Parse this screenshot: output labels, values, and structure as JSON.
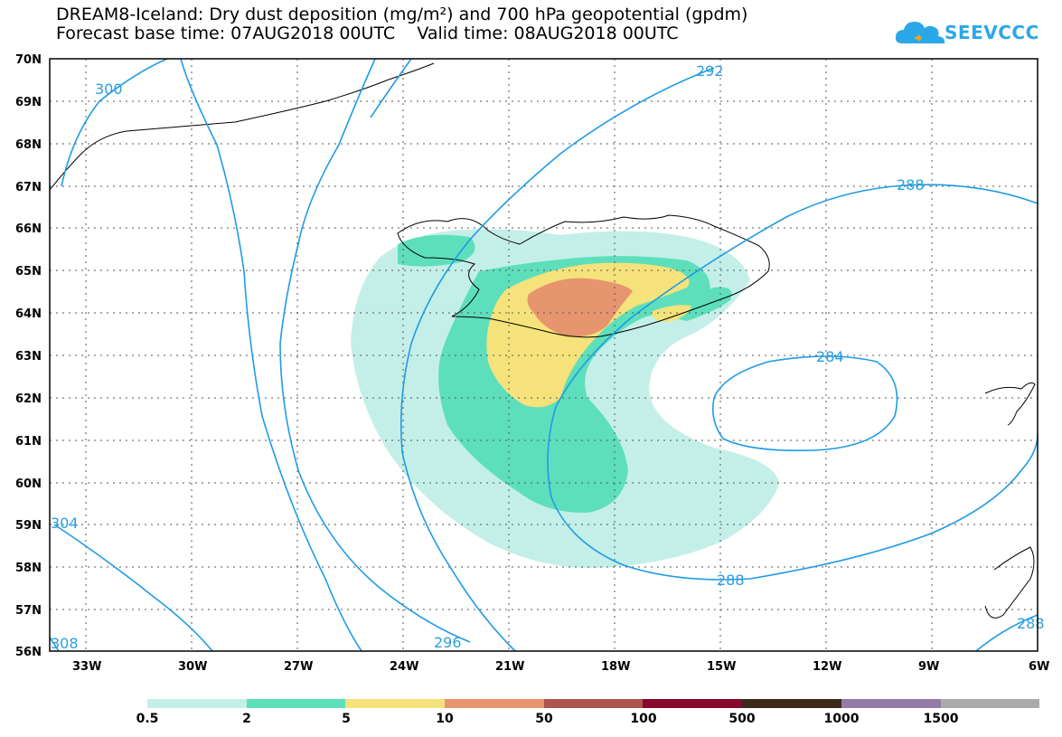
{
  "title": {
    "line1": "DREAM8-Iceland: Dry dust deposition (mg/m²) and 700 hPa geopotential (gpdm)",
    "line2": "Forecast base time: 07AUG2018 00UTC    Valid time: 08AUG2018 00UTC"
  },
  "logo": {
    "text": "SEEVCCC",
    "icon": "cloud-logo-icon",
    "color": "#2aa7e6"
  },
  "map": {
    "lat_labels": [
      "70N",
      "69N",
      "68N",
      "67N",
      "66N",
      "65N",
      "64N",
      "63N",
      "62N",
      "61N",
      "60N",
      "59N",
      "58N",
      "57N",
      "56N"
    ],
    "lon_labels": [
      "33W",
      "30W",
      "27W",
      "24W",
      "21W",
      "18W",
      "15W",
      "12W",
      "9W",
      "6W"
    ],
    "contour_color": "#1f9be6",
    "contour_labels": [
      "300",
      "292",
      "288",
      "284",
      "288",
      "296",
      "308",
      "304",
      "288"
    ]
  },
  "legend": {
    "colors": [
      "#c4efe8",
      "#5ddfbc",
      "#f5e27a",
      "#e6956f",
      "#ad544f",
      "#870a2d",
      "#3d2a19",
      "#947aa4",
      "#aaaaaa"
    ],
    "labels": [
      "0.5",
      "2",
      "5",
      "10",
      "50",
      "100",
      "500",
      "1000",
      "1500"
    ]
  }
}
